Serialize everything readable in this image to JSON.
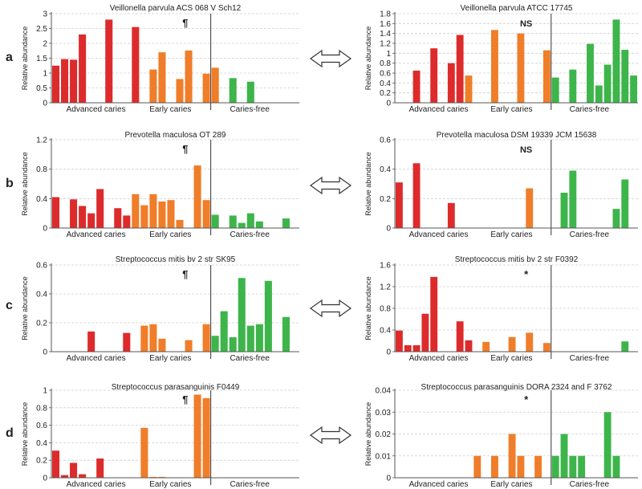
{
  "colors": {
    "advanced": "#dd2b2b",
    "early": "#f07d29",
    "free": "#3db54a",
    "grid": "#cfcfcf",
    "axis": "#555555",
    "divider": "#333333",
    "text": "#222222"
  },
  "row_labels": [
    "a",
    "b",
    "c",
    "d"
  ],
  "arrow_icon": "double-arrow-icon",
  "chart_data": [
    {
      "type": "bar",
      "row": 0,
      "col": 0,
      "title": "Veillonella parvula ACS 068 V Sch12",
      "ylabel": "Relative abundance",
      "mark": "¶",
      "ylim": [
        0,
        3
      ],
      "yticks": [
        "0",
        "0.5",
        "1",
        "1.5",
        "2",
        "2.5",
        "3"
      ],
      "ytick_values": [
        0,
        0.5,
        1,
        1.5,
        2,
        2.5,
        3
      ],
      "groups": [
        "Advanced caries",
        "Early caries",
        "Caries-free"
      ],
      "n_slots": 28,
      "divider_slot": 18,
      "series": [
        {
          "name": "Advanced caries",
          "start": 0,
          "values": [
            1.25,
            1.47,
            1.45,
            2.3,
            0,
            0,
            2.8,
            0,
            0,
            2.55
          ]
        },
        {
          "name": "Early caries",
          "start": 10,
          "values": [
            0,
            1.12,
            1.7,
            0,
            0.8,
            1.76,
            0,
            0.98,
            1.18
          ]
        },
        {
          "name": "Caries-free",
          "start": 19,
          "values": [
            0,
            0.83,
            0,
            0.71,
            0,
            0,
            0,
            0,
            0
          ]
        }
      ]
    },
    {
      "type": "bar",
      "row": 0,
      "col": 1,
      "title": "Veillonella parvula ATCC 17745",
      "ylabel": "Relative abundance",
      "mark": "NS",
      "ylim": [
        0,
        1.8
      ],
      "yticks": [
        "0",
        "0.2",
        "0.4",
        "0.6",
        "0.8",
        "1",
        "1.2",
        "1.4",
        "1.6",
        "1.8"
      ],
      "ytick_values": [
        0,
        0.2,
        0.4,
        0.6,
        0.8,
        1,
        1.2,
        1.4,
        1.6,
        1.8
      ],
      "groups": [
        "Advanced caries",
        "Early caries",
        "Caries-free"
      ],
      "n_slots": 28,
      "divider_slot": 18,
      "series": [
        {
          "name": "Advanced caries",
          "start": 0,
          "values": [
            0,
            0,
            0.65,
            0,
            1.1,
            0,
            0.8,
            1.37
          ]
        },
        {
          "name": "Early caries",
          "start": 8,
          "values": [
            0.55,
            0,
            0,
            1.47,
            0,
            0,
            1.4,
            0,
            0,
            1.06
          ]
        },
        {
          "name": "Caries-free",
          "start": 18,
          "values": [
            0.51,
            0,
            0.67,
            0,
            1.19,
            0.35,
            0.77,
            1.68,
            1.07,
            0.55
          ]
        }
      ]
    },
    {
      "type": "bar",
      "row": 1,
      "col": 0,
      "title": "Prevotella maculosa OT 289",
      "ylabel": "Relative abundance",
      "mark": "¶",
      "ylim": [
        0,
        1.2
      ],
      "yticks": [
        "0",
        "0.4",
        "0.8",
        "1.2"
      ],
      "ytick_values": [
        0,
        0.4,
        0.8,
        1.2
      ],
      "groups": [
        "Advanced caries",
        "Early caries",
        "Caries-free"
      ],
      "n_slots": 28,
      "divider_slot": 18,
      "series": [
        {
          "name": "Advanced caries",
          "start": 0,
          "values": [
            0.42,
            0,
            0.39,
            0.3,
            0.2,
            0.53,
            0,
            0.27,
            0.17
          ]
        },
        {
          "name": "Early caries",
          "start": 9,
          "values": [
            0.46,
            0.31,
            0.46,
            0.36,
            0.38,
            0.11,
            0,
            0.85,
            0.38
          ]
        },
        {
          "name": "Caries-free",
          "start": 18,
          "values": [
            0.18,
            0,
            0.17,
            0.07,
            0.2,
            0.09,
            0,
            0,
            0.13
          ]
        }
      ]
    },
    {
      "type": "bar",
      "row": 1,
      "col": 1,
      "title": "Prevotella maculosa DSM 19339 JCM 15638",
      "ylabel": "Relative abundance",
      "mark": "NS",
      "ylim": [
        0,
        0.6
      ],
      "yticks": [
        "0",
        "0.2",
        "0.4",
        "0.6"
      ],
      "ytick_values": [
        0,
        0.2,
        0.4,
        0.6
      ],
      "groups": [
        "Advanced caries",
        "Early caries",
        "Caries-free"
      ],
      "n_slots": 28,
      "divider_slot": 18,
      "series": [
        {
          "name": "Advanced caries",
          "start": 0,
          "values": [
            0.31,
            0,
            0.44,
            0,
            0,
            0,
            0.17
          ]
        },
        {
          "name": "Early caries",
          "start": 7,
          "values": [
            0,
            0,
            0,
            0,
            0,
            0,
            0,
            0,
            0.27,
            0
          ]
        },
        {
          "name": "Caries-free",
          "start": 19,
          "values": [
            0.24,
            0.39,
            0,
            0,
            0,
            0,
            0.13,
            0.33,
            0
          ]
        }
      ]
    },
    {
      "type": "bar",
      "row": 2,
      "col": 0,
      "title": "Streptococcus mitis bv 2 str SK95",
      "ylabel": "Relative abundance",
      "mark": "¶",
      "ylim": [
        0,
        0.6
      ],
      "yticks": [
        "0",
        "0.2",
        "0.4",
        "0.6"
      ],
      "ytick_values": [
        0,
        0.2,
        0.4,
        0.6
      ],
      "groups": [
        "Advanced caries",
        "Early caries",
        "Caries-free"
      ],
      "n_slots": 28,
      "divider_slot": 18,
      "series": [
        {
          "name": "Advanced caries",
          "start": 0,
          "values": [
            0,
            0,
            0,
            0,
            0.14,
            0,
            0,
            0,
            0.13
          ]
        },
        {
          "name": "Early caries",
          "start": 9,
          "values": [
            0,
            0.18,
            0.19,
            0.09,
            0,
            0,
            0.08,
            0,
            0.19
          ]
        },
        {
          "name": "Caries-free",
          "start": 18,
          "values": [
            0.11,
            0.28,
            0.1,
            0.51,
            0.18,
            0.19,
            0.49,
            0,
            0.24
          ]
        }
      ]
    },
    {
      "type": "bar",
      "row": 2,
      "col": 1,
      "title": "Streptococcus mitis bv 2 str F0392",
      "ylabel": "Relative abundance",
      "mark": "*",
      "ylim": [
        0,
        1.6
      ],
      "yticks": [
        "0",
        "0.4",
        "0.8",
        "1.2",
        "1.6"
      ],
      "ytick_values": [
        0,
        0.4,
        0.8,
        1.2,
        1.6
      ],
      "groups": [
        "Advanced caries",
        "Early caries",
        "Caries-free"
      ],
      "n_slots": 28,
      "divider_slot": 18,
      "series": [
        {
          "name": "Advanced caries",
          "start": 0,
          "values": [
            0.39,
            0.12,
            0.12,
            0.7,
            1.38,
            0,
            0,
            0.56,
            0.21
          ]
        },
        {
          "name": "Early caries",
          "start": 9,
          "values": [
            0,
            0.18,
            0,
            0,
            0.27,
            0,
            0.35,
            0,
            0.16
          ]
        },
        {
          "name": "Caries-free",
          "start": 18,
          "values": [
            0,
            0,
            0,
            0,
            0,
            0,
            0,
            0,
            0.19
          ]
        }
      ]
    },
    {
      "type": "bar",
      "row": 3,
      "col": 0,
      "title": "Streptococcus parasanguinis F0449",
      "ylabel": "Relative abundance",
      "mark": "¶",
      "ylim": [
        0,
        1
      ],
      "yticks": [
        "0",
        "0.2",
        "0.4",
        "0.6",
        "0.8",
        "1"
      ],
      "ytick_values": [
        0,
        0.2,
        0.4,
        0.6,
        0.8,
        1
      ],
      "groups": [
        "Advanced caries",
        "Early caries",
        "Caries-free"
      ],
      "n_slots": 28,
      "divider_slot": 18,
      "series": [
        {
          "name": "Advanced caries",
          "start": 0,
          "values": [
            0.31,
            0.03,
            0.17,
            0.04,
            0,
            0.22
          ]
        },
        {
          "name": "Early caries",
          "start": 9,
          "values": [
            0,
            0.57,
            0.01,
            0.01,
            0,
            0,
            0,
            0.95,
            0.91
          ]
        },
        {
          "name": "Caries-free",
          "start": 18,
          "values": [
            0,
            0,
            0,
            0,
            0,
            0,
            0,
            0,
            0
          ]
        }
      ]
    },
    {
      "type": "bar",
      "row": 3,
      "col": 1,
      "title": "Streptococcus parasanguinis DORA 2324 and F 3762",
      "ylabel": "Relative abundance",
      "mark": "*",
      "ylim": [
        0,
        0.04
      ],
      "yticks": [
        "0",
        "0.01",
        "0.02",
        "0.03",
        "0.04"
      ],
      "ytick_values": [
        0,
        0.01,
        0.02,
        0.03,
        0.04
      ],
      "groups": [
        "Advanced caries",
        "Early caries",
        "Caries-free"
      ],
      "n_slots": 28,
      "divider_slot": 18,
      "series": [
        {
          "name": "Advanced caries",
          "start": 0,
          "values": [
            0,
            0,
            0,
            0,
            0,
            0,
            0,
            0,
            0
          ]
        },
        {
          "name": "Early caries",
          "start": 9,
          "values": [
            0.01,
            0,
            0.01,
            0,
            0.02,
            0.01,
            0,
            0.01,
            0
          ]
        },
        {
          "name": "Caries-free",
          "start": 18,
          "values": [
            0.01,
            0.02,
            0.01,
            0.01,
            0,
            0,
            0.03,
            0.01,
            0
          ]
        }
      ]
    }
  ]
}
